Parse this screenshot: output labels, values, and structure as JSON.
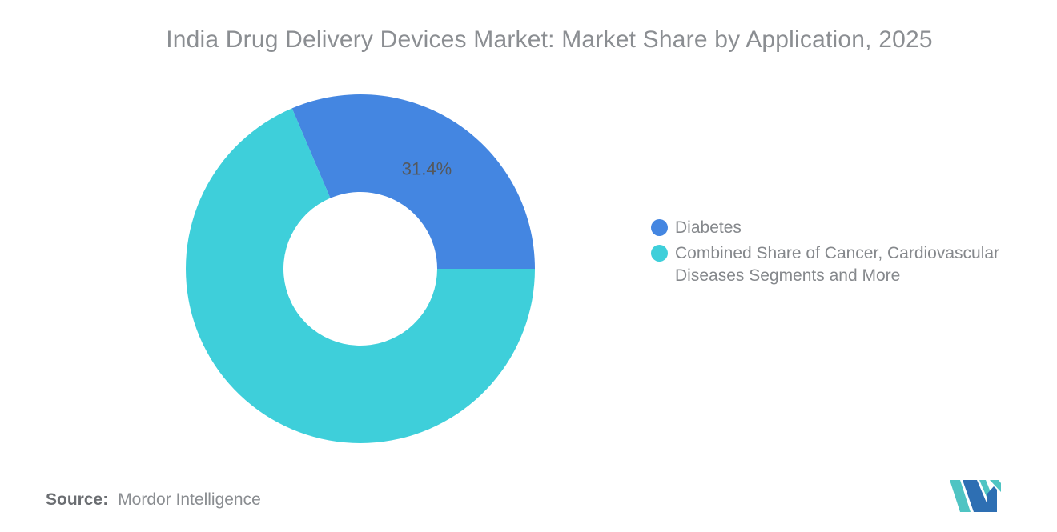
{
  "title": "India Drug Delivery Devices Market: Market Share by Application, 2025",
  "chart_data": {
    "type": "pie",
    "subtype": "donut",
    "title": "India Drug Delivery Devices Market: Market Share by Application, 2025",
    "start_angle_deg": -23.04,
    "inner_radius_ratio": 0.44,
    "legend_position": "right",
    "series": [
      {
        "name": "Diabetes",
        "value": 31.4,
        "color": "#4486E1",
        "data_label": "31.4%"
      },
      {
        "name": "Combined Share of Cancer, Cardiovascular Diseases Segments and More",
        "value": 68.6,
        "color": "#3ECFDA",
        "data_label": ""
      }
    ]
  },
  "legend": {
    "items": [
      {
        "label": "Diabetes",
        "color": "#4486E1"
      },
      {
        "label": "Combined Share of Cancer, Cardiovascular Diseases Segments and More",
        "color": "#3ECFDA"
      }
    ]
  },
  "source": {
    "label": "Source:",
    "value": "Mordor Intelligence"
  },
  "logo": {
    "name": "Mordor Intelligence logo",
    "blue": "#2E6FB3",
    "teal": "#4FC4C3"
  },
  "colors": {
    "background": "#FFFFFF",
    "title_text": "#8B8E92",
    "legend_text": "#85888C",
    "data_label_text": "#55585C",
    "source_label_text": "#6B6E72",
    "source_value_text": "#8A8D91"
  }
}
